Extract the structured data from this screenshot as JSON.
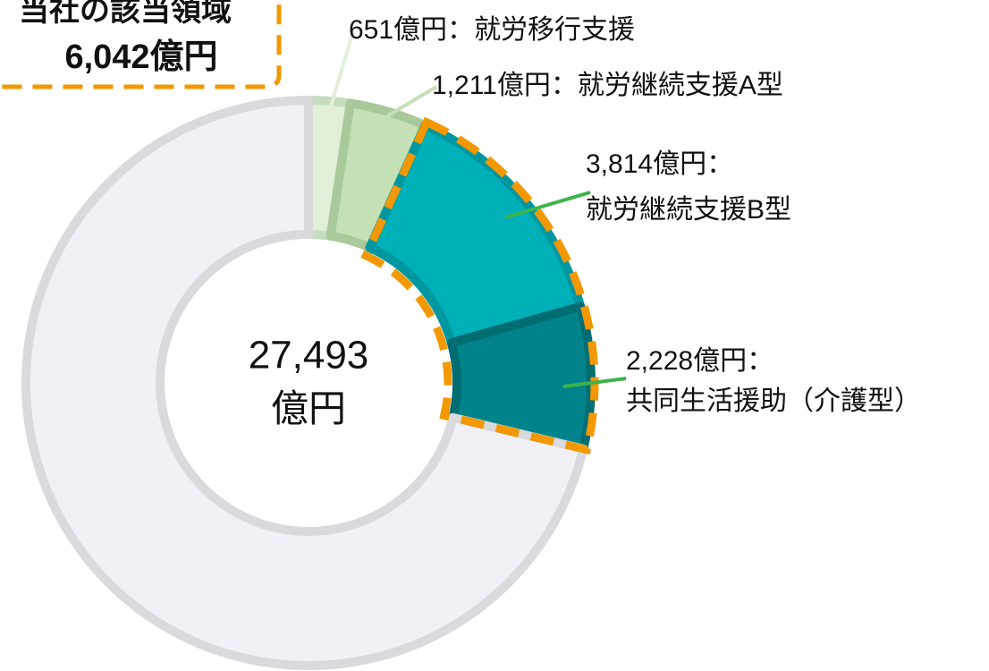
{
  "chart_data": {
    "type": "donut",
    "categories": [
      "就労移行支援",
      "就労継続支援A型",
      "就労継続支援B型",
      "共同生活援助（介護型）",
      null
    ],
    "values": [
      651,
      1211,
      3814,
      2228,
      19589
    ],
    "value_labels": [
      "651億円：",
      "1,211億円：",
      "3,814億円：",
      "2,228億円：",
      null
    ],
    "colors": [
      "#e2efd9",
      "#c5e0b4",
      "#00b0b8",
      "#00838a",
      "#f0f0f6"
    ],
    "center_text": [
      "27,493",
      "億円"
    ],
    "annotation": [
      "当社の該当領域",
      "6,042億円"
    ]
  }
}
